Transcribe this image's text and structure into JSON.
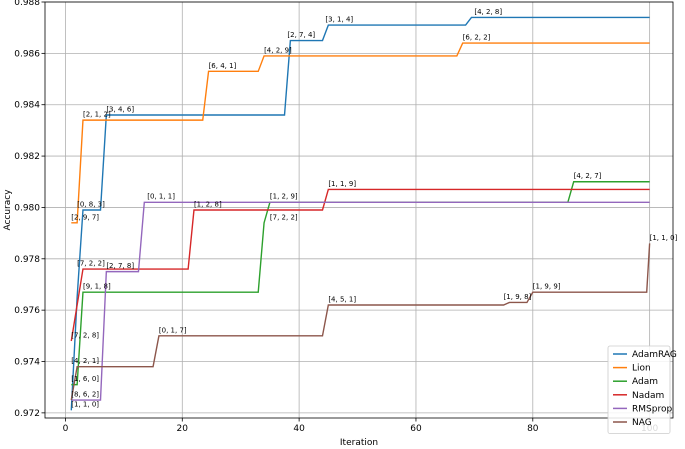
{
  "chart_data": {
    "type": "line",
    "title": "",
    "xlabel": "Iteration",
    "ylabel": "Accuracy",
    "xlim": [
      -3.5,
      104
    ],
    "ylim": [
      0.9718,
      0.988
    ],
    "xticks": [
      0,
      20,
      40,
      60,
      80,
      100
    ],
    "yticks": [
      0.972,
      0.974,
      0.976,
      0.978,
      0.98,
      0.982,
      0.984,
      0.986,
      0.988
    ],
    "ytick_labels": [
      "0.972",
      "0.974",
      "0.976",
      "0.978",
      "0.980",
      "0.982",
      "0.984",
      "0.986",
      "0.988"
    ],
    "grid": true,
    "legend_position": "lower-right",
    "series": [
      {
        "name": "AdamRAG",
        "color": "#1f77b4",
        "points": [
          [
            1,
            0.9721
          ],
          [
            2,
            0.9765
          ],
          [
            3,
            0.9799
          ],
          [
            6,
            0.9799
          ],
          [
            7,
            0.9836
          ],
          [
            37.5,
            0.9836
          ],
          [
            38.5,
            0.9865
          ],
          [
            44,
            0.9865
          ],
          [
            45,
            0.9871
          ],
          [
            68.5,
            0.9871
          ],
          [
            69.5,
            0.9874
          ],
          [
            100,
            0.9874
          ]
        ]
      },
      {
        "name": "Lion",
        "color": "#ff7f0e",
        "points": [
          [
            1,
            0.9794
          ],
          [
            2,
            0.9794
          ],
          [
            3,
            0.9834
          ],
          [
            23.5,
            0.9834
          ],
          [
            24.5,
            0.9853
          ],
          [
            33,
            0.9853
          ],
          [
            34,
            0.9859
          ],
          [
            67,
            0.9859
          ],
          [
            68,
            0.9864
          ],
          [
            100,
            0.9864
          ]
        ]
      },
      {
        "name": "Adam",
        "color": "#2ca02c",
        "points": [
          [
            1,
            0.9731
          ],
          [
            2,
            0.9731
          ],
          [
            3,
            0.9767
          ],
          [
            33,
            0.9767
          ],
          [
            34,
            0.9794
          ],
          [
            35,
            0.9802
          ],
          [
            86,
            0.9802
          ],
          [
            87,
            0.981
          ],
          [
            100,
            0.981
          ]
        ]
      },
      {
        "name": "Nadam",
        "color": "#d62728",
        "points": [
          [
            1,
            0.9748
          ],
          [
            2,
            0.9762
          ],
          [
            3,
            0.9776
          ],
          [
            21,
            0.9776
          ],
          [
            22,
            0.9799
          ],
          [
            44,
            0.9799
          ],
          [
            45,
            0.9807
          ],
          [
            100,
            0.9807
          ]
        ]
      },
      {
        "name": "RMSprop",
        "color": "#9467bd",
        "points": [
          [
            1,
            0.9725
          ],
          [
            6,
            0.9725
          ],
          [
            7,
            0.9775
          ],
          [
            12.5,
            0.9775
          ],
          [
            13.5,
            0.9802
          ],
          [
            100,
            0.9802
          ]
        ]
      },
      {
        "name": "NAG",
        "color": "#8c564b",
        "points": [
          [
            1,
            0.9725
          ],
          [
            2,
            0.9738
          ],
          [
            15,
            0.9738
          ],
          [
            16,
            0.975
          ],
          [
            44,
            0.975
          ],
          [
            45,
            0.9762
          ],
          [
            75,
            0.9762
          ],
          [
            76,
            0.9763
          ],
          [
            79,
            0.9763
          ],
          [
            80,
            0.9767
          ],
          [
            99.5,
            0.9767
          ],
          [
            100,
            0.9786
          ]
        ]
      }
    ],
    "annotations": [
      {
        "text": "[3, 1, 4]",
        "x": 44.5,
        "y": 0.9872
      },
      {
        "text": "[4, 2, 8]",
        "x": 70,
        "y": 0.9875
      },
      {
        "text": "[6, 2, 2]",
        "x": 68,
        "y": 0.9865
      },
      {
        "text": "[2, 7, 4]",
        "x": 38,
        "y": 0.9866
      },
      {
        "text": "[4, 2, 9]",
        "x": 34,
        "y": 0.986
      },
      {
        "text": "[6, 4, 1]",
        "x": 24.5,
        "y": 0.9854
      },
      {
        "text": "[3, 4, 6]",
        "x": 7,
        "y": 0.9837
      },
      {
        "text": "[2, 1, 2]",
        "x": 3,
        "y": 0.9835
      },
      {
        "text": "[1, 1, 9]",
        "x": 45,
        "y": 0.9808
      },
      {
        "text": "[4, 2, 7]",
        "x": 87,
        "y": 0.9811
      },
      {
        "text": "[0, 1, 1]",
        "x": 14,
        "y": 0.9803
      },
      {
        "text": "[1, 2, 9]",
        "x": 35,
        "y": 0.9803
      },
      {
        "text": "[1, 2, 8]",
        "x": 22,
        "y": 0.98
      },
      {
        "text": "[7, 2, 2]",
        "x": 35,
        "y": 0.9795
      },
      {
        "text": "[0, 8, 3]",
        "x": 2,
        "y": 0.98
      },
      {
        "text": "[2, 9, 7]",
        "x": 1,
        "y": 0.9795
      },
      {
        "text": "[1, 1, 0]",
        "x": 100,
        "y": 0.9787
      },
      {
        "text": "[7, 2, 2]",
        "x": 2,
        "y": 0.9777
      },
      {
        "text": "[2, 7, 8]",
        "x": 7,
        "y": 0.9776
      },
      {
        "text": "[9, 1, 8]",
        "x": 3,
        "y": 0.9768
      },
      {
        "text": "[1, 9, 8]",
        "x": 75,
        "y": 0.9764
      },
      {
        "text": "[1, 9, 9]",
        "x": 80,
        "y": 0.9768
      },
      {
        "text": "[4, 5, 1]",
        "x": 45,
        "y": 0.9763
      },
      {
        "text": "[0, 1, 7]",
        "x": 16,
        "y": 0.9751
      },
      {
        "text": "[7, 2, 8]",
        "x": 1,
        "y": 0.9749
      },
      {
        "text": "[4, 2, 1]",
        "x": 1,
        "y": 0.9739
      },
      {
        "text": "[1, 6, 0]",
        "x": 1,
        "y": 0.9732
      },
      {
        "text": "[8, 6, 2]",
        "x": 1,
        "y": 0.9726
      },
      {
        "text": "[1, 1, 0]",
        "x": 1,
        "y": 0.9722
      }
    ]
  }
}
